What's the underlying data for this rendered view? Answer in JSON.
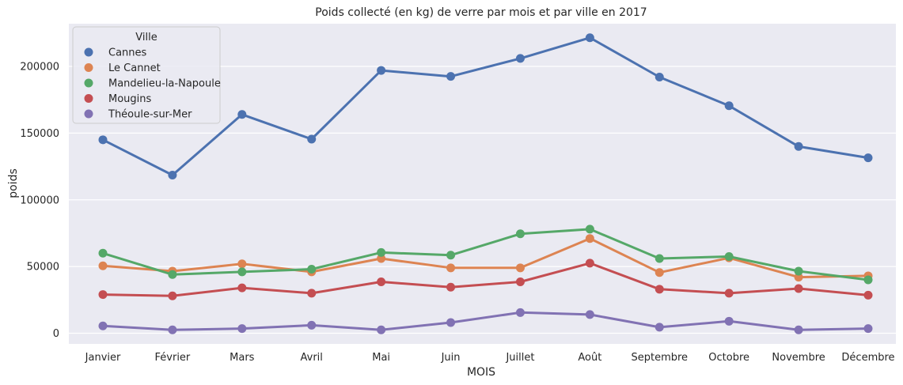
{
  "chart_data": {
    "type": "line",
    "title": "Poids collecté (en kg) de verre par mois et par ville en 2017",
    "xlabel": "MOIS",
    "ylabel": "poids",
    "categories": [
      "Janvier",
      "Février",
      "Mars",
      "Avril",
      "Mai",
      "Juin",
      "Juillet",
      "Août",
      "Septembre",
      "Octobre",
      "Novembre",
      "Décembre"
    ],
    "yticks": [
      0,
      50000,
      100000,
      150000,
      200000
    ],
    "ylim": [
      -8000,
      232000
    ],
    "grid": true,
    "legend": {
      "title": "Ville",
      "position": "top-left"
    },
    "series": [
      {
        "name": "Cannes",
        "color": "#4c72b0",
        "values": [
          145000,
          118500,
          164000,
          145500,
          197000,
          192500,
          206000,
          221500,
          192000,
          170500,
          140000,
          131500
        ]
      },
      {
        "name": "Le Cannet",
        "color": "#dd8452",
        "values": [
          50500,
          46500,
          52000,
          46000,
          56000,
          49000,
          49000,
          71000,
          45500,
          56500,
          42000,
          43000
        ]
      },
      {
        "name": "Mandelieu-la-Napoule",
        "color": "#55a868",
        "values": [
          60000,
          44000,
          46000,
          48000,
          60500,
          58500,
          74500,
          78000,
          56000,
          57500,
          46500,
          40000
        ]
      },
      {
        "name": "Mougins",
        "color": "#c44e52",
        "values": [
          29000,
          28000,
          34000,
          30000,
          38500,
          34500,
          38500,
          52500,
          33000,
          30000,
          33500,
          28500
        ]
      },
      {
        "name": "Théoule-sur-Mer",
        "color": "#8172b3",
        "values": [
          5500,
          2500,
          3500,
          6000,
          2500,
          8000,
          15500,
          14000,
          4500,
          9000,
          2500,
          3500
        ]
      }
    ]
  }
}
